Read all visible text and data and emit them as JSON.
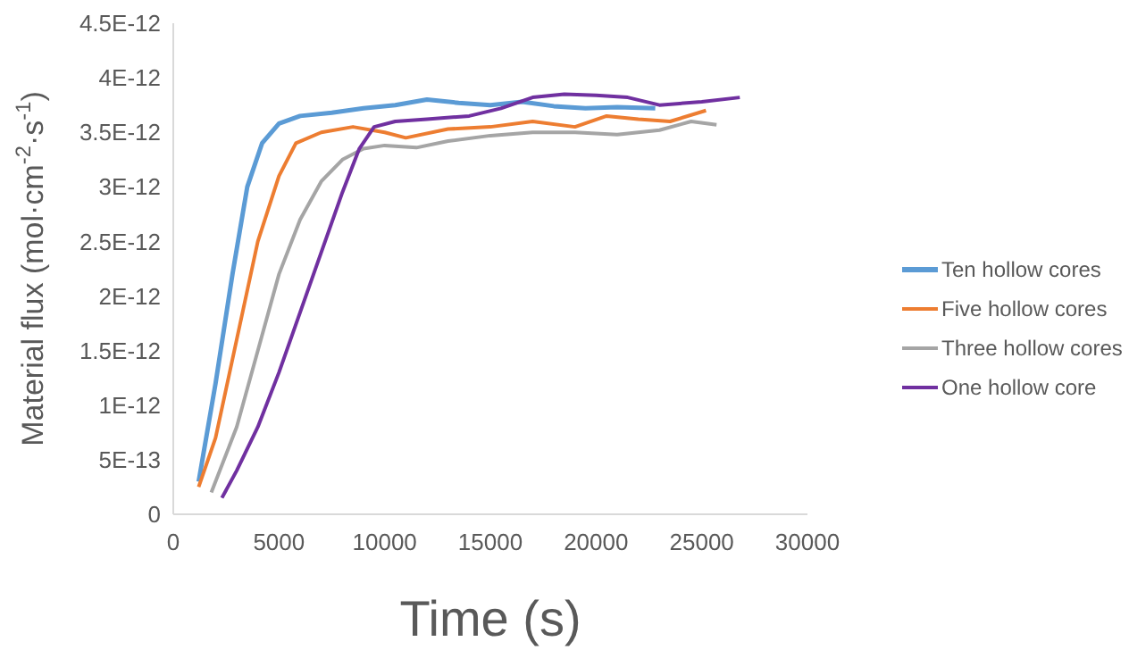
{
  "chart_data": {
    "type": "line",
    "xlabel": "Time (s)",
    "ylabel": "Material flux (mol·cm$^{-2}$·s$^{-1}$)",
    "xlim": [
      0,
      30000
    ],
    "xticks": [
      0,
      5000,
      10000,
      15000,
      20000,
      25000,
      30000
    ],
    "ylim": [
      0,
      4.5e-12
    ],
    "yticks": [
      0,
      {
        "value": 5e-13,
        "label": "5E-13"
      },
      {
        "value": 1e-12,
        "label": "1E-12"
      },
      {
        "value": 1.5e-12,
        "label": "1.5E-12"
      },
      {
        "value": 2e-12,
        "label": "2E-12"
      },
      {
        "value": 2.5e-12,
        "label": "2.5E-12"
      },
      {
        "value": 3e-12,
        "label": "3E-12"
      },
      {
        "value": 3.5e-12,
        "label": "3.5E-12"
      },
      {
        "value": 4e-12,
        "label": "4E-12"
      },
      {
        "value": 4.5e-12,
        "label": "4.5E-12"
      }
    ],
    "grid": false,
    "legend": "right",
    "marker": "none",
    "line_style": "solid",
    "series": [
      {
        "name": "Ten hollow cores",
        "color": "#5b9bd5",
        "x": [
          1200,
          2000,
          2800,
          3500,
          4200,
          5000,
          6000,
          7500,
          9000,
          10500,
          12000,
          13500,
          15000,
          16500,
          18000,
          19500,
          21000,
          22800
        ],
        "values": [
          3e-13,
          1.2e-12,
          2.2e-12,
          3e-12,
          3.4e-12,
          3.58e-12,
          3.65e-12,
          3.68e-12,
          3.72e-12,
          3.75e-12,
          3.8e-12,
          3.77e-12,
          3.75e-12,
          3.78e-12,
          3.74e-12,
          3.72e-12,
          3.73e-12,
          3.72e-12
        ]
      },
      {
        "name": "Five hollow cores",
        "color": "#ed7d31",
        "x": [
          1200,
          2000,
          3000,
          4000,
          5000,
          5800,
          7000,
          8500,
          10000,
          11000,
          13000,
          15000,
          17000,
          19000,
          20500,
          22000,
          23500,
          25200
        ],
        "values": [
          2.5e-13,
          7e-13,
          1.6e-12,
          2.5e-12,
          3.1e-12,
          3.4e-12,
          3.5e-12,
          3.55e-12,
          3.5e-12,
          3.45e-12,
          3.53e-12,
          3.55e-12,
          3.6e-12,
          3.55e-12,
          3.65e-12,
          3.62e-12,
          3.6e-12,
          3.7e-12
        ]
      },
      {
        "name": "Three hollow cores",
        "color": "#a5a5a5",
        "x": [
          1800,
          3000,
          4000,
          5000,
          6000,
          7000,
          8000,
          9000,
          10000,
          11500,
          13000,
          15000,
          17000,
          19000,
          21000,
          23000,
          24500,
          25700
        ],
        "values": [
          2e-13,
          8e-13,
          1.5e-12,
          2.2e-12,
          2.7e-12,
          3.05e-12,
          3.25e-12,
          3.35e-12,
          3.38e-12,
          3.36e-12,
          3.42e-12,
          3.47e-12,
          3.5e-12,
          3.5e-12,
          3.48e-12,
          3.52e-12,
          3.6e-12,
          3.57e-12
        ]
      },
      {
        "name": "One hollow core",
        "color": "#7030a0",
        "x": [
          2300,
          3000,
          4000,
          5000,
          6000,
          7000,
          8000,
          8800,
          9500,
          10500,
          12000,
          14000,
          15500,
          17000,
          18500,
          20000,
          21500,
          23000,
          25000,
          26800
        ],
        "values": [
          1.5e-13,
          4e-13,
          8e-13,
          1.3e-12,
          1.85e-12,
          2.4e-12,
          2.95e-12,
          3.35e-12,
          3.55e-12,
          3.6e-12,
          3.62e-12,
          3.65e-12,
          3.72e-12,
          3.82e-12,
          3.85e-12,
          3.84e-12,
          3.82e-12,
          3.75e-12,
          3.78e-12,
          3.82e-12
        ]
      }
    ]
  }
}
